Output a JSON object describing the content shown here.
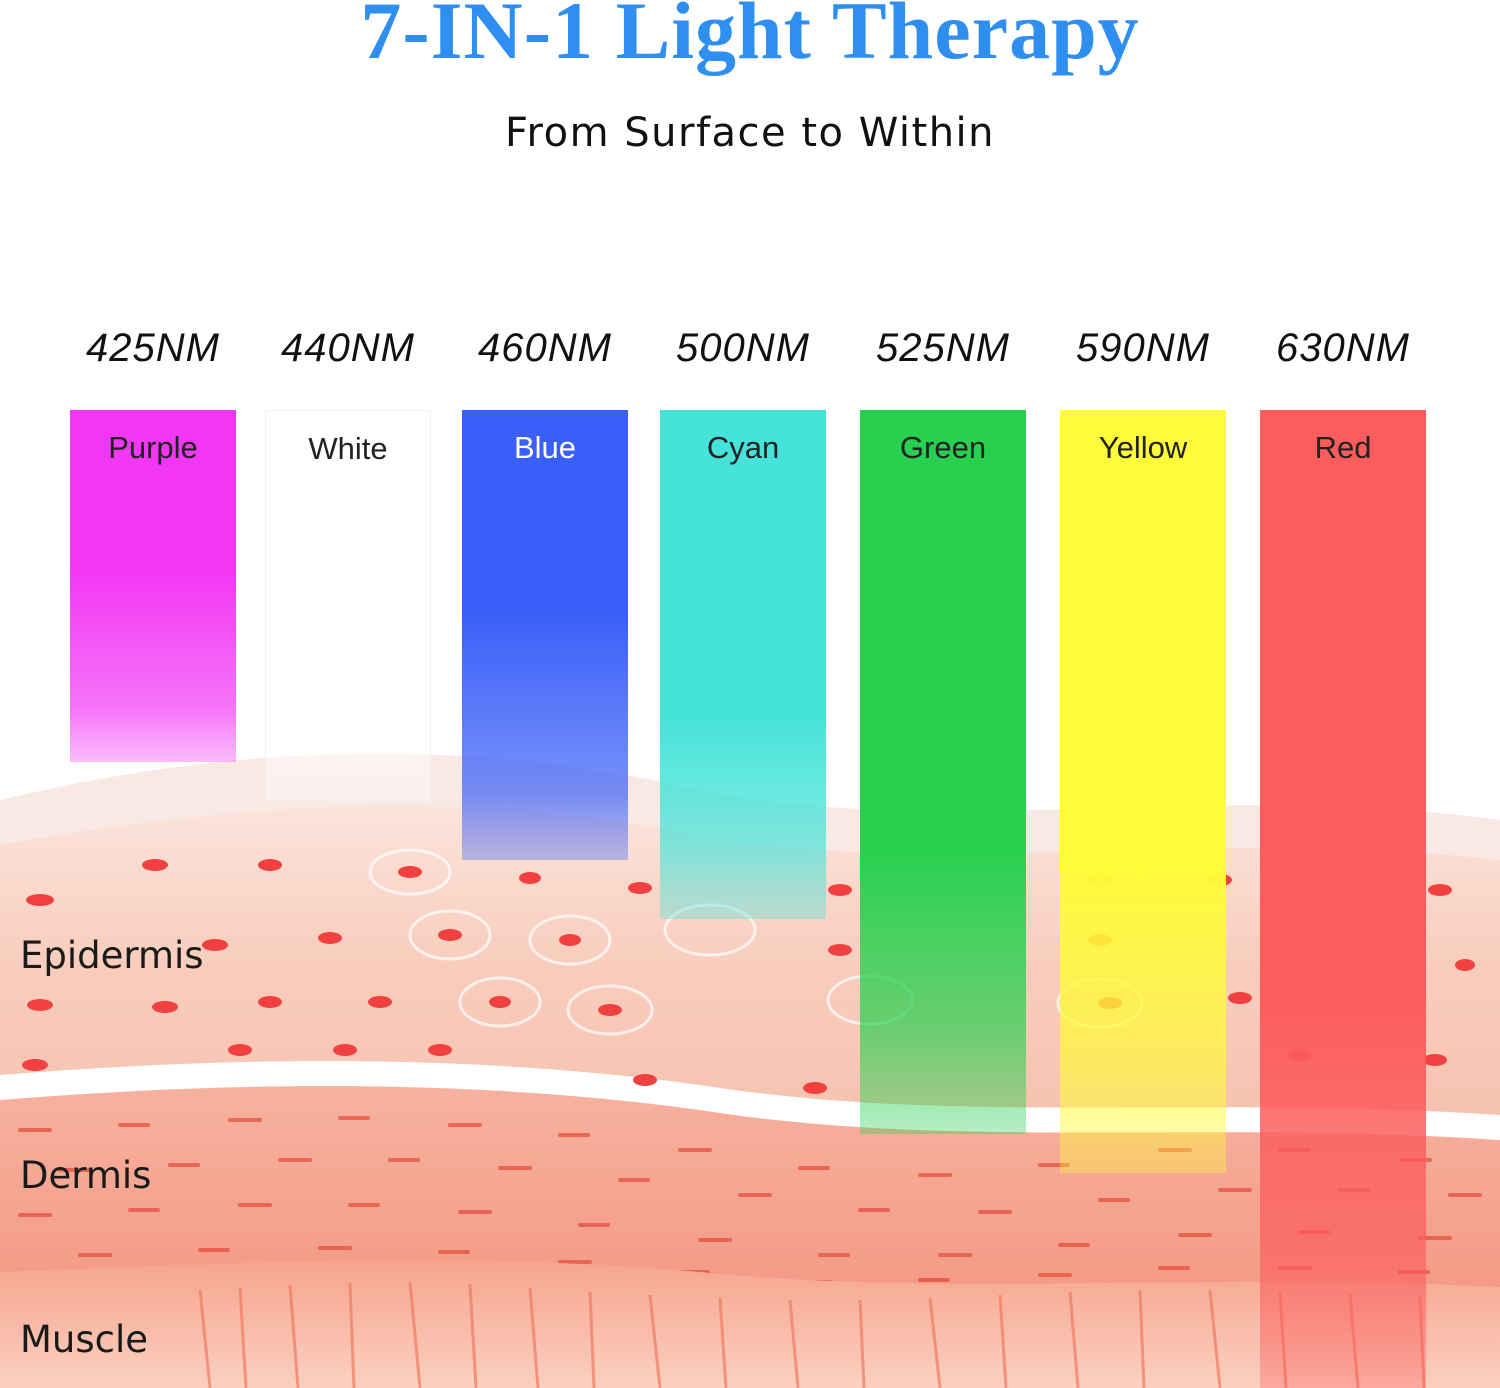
{
  "header": {
    "title": "7-IN-1 Light Therapy",
    "subtitle": "From Surface to Within"
  },
  "bands": [
    {
      "wavelength": "425NM",
      "color_name": "Purple",
      "color": "#f236f5",
      "label_color": "#222222",
      "depth_fraction": 0.36
    },
    {
      "wavelength": "440NM",
      "color_name": "White",
      "color": "#ffffff",
      "label_color": "#222222",
      "depth_fraction": 0.4
    },
    {
      "wavelength": "460NM",
      "color_name": "Blue",
      "color": "#3a5ff8",
      "label_color": "#ffffff",
      "depth_fraction": 0.46
    },
    {
      "wavelength": "500NM",
      "color_name": "Cyan",
      "color": "#45e3d9",
      "label_color": "#222222",
      "depth_fraction": 0.52
    },
    {
      "wavelength": "525NM",
      "color_name": "Green",
      "color": "#27d04e",
      "label_color": "#222222",
      "depth_fraction": 0.74
    },
    {
      "wavelength": "590NM",
      "color_name": "Yellow",
      "color": "#fffa3a",
      "label_color": "#222222",
      "depth_fraction": 0.78
    },
    {
      "wavelength": "630NM",
      "color_name": "Red",
      "color": "#fb5c5c",
      "label_color": "#222222",
      "depth_fraction": 1.0
    }
  ],
  "layers": {
    "epidermis": "Epidermis",
    "dermis": "Dermis",
    "muscle": "Muscle"
  }
}
